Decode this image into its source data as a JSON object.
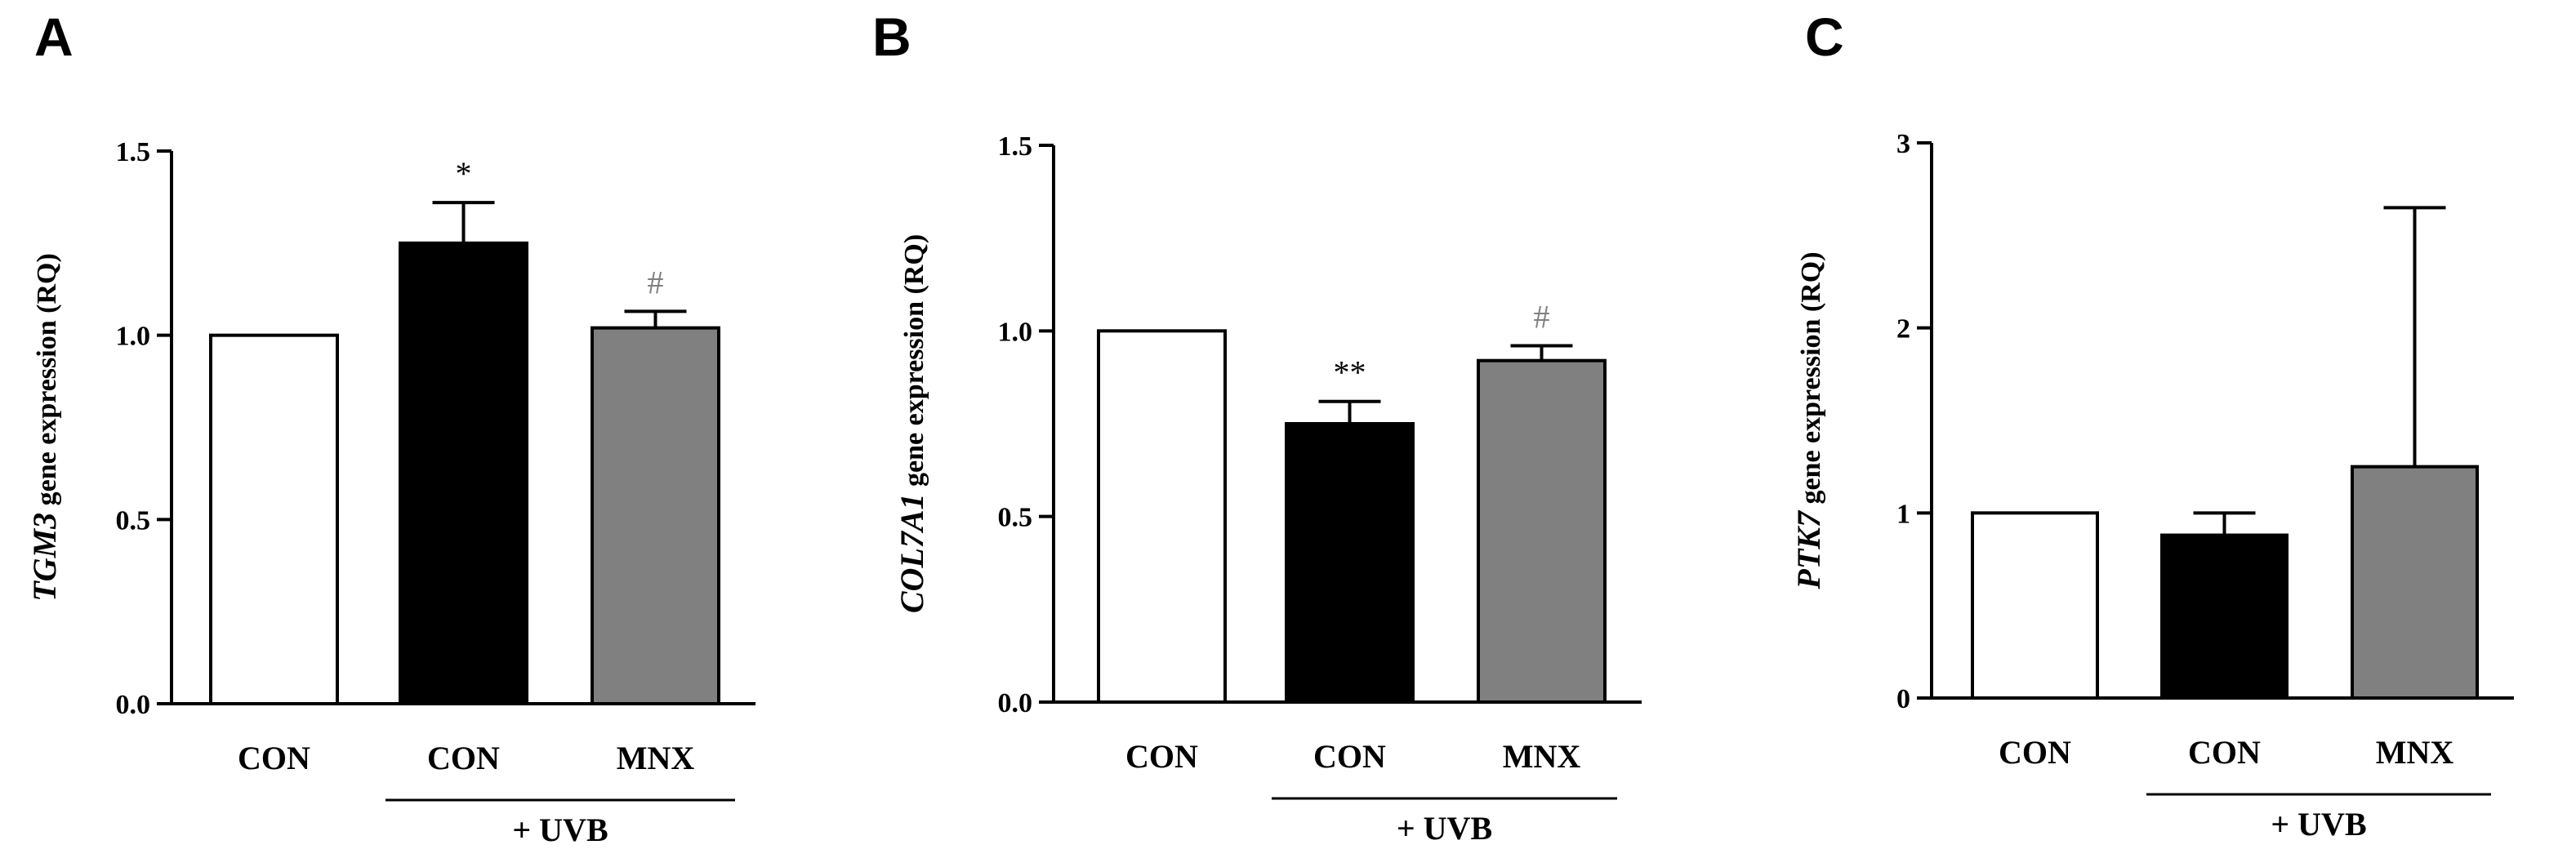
{
  "chart_data": [
    {
      "type": "bar",
      "panel": "A",
      "gene": "TGM3",
      "ylabel_suffix": " gene expression (RQ)",
      "categories": [
        "CON",
        "CON",
        "MNX"
      ],
      "group_label": "+ UVB",
      "values": [
        1.0,
        1.25,
        1.02
      ],
      "errors": [
        0,
        0.11,
        0.045
      ],
      "annotations": [
        "",
        "*",
        "#"
      ],
      "annotation_colors": [
        "#000000",
        "#000000",
        "#808080"
      ],
      "colors": [
        "#ffffff",
        "#000000",
        "#808080"
      ],
      "ylim": [
        0,
        1.5
      ],
      "yticks": [
        0.0,
        0.5,
        1.0,
        1.5
      ],
      "ytick_labels": [
        "0.0",
        "0.5",
        "1.0",
        "1.5"
      ]
    },
    {
      "type": "bar",
      "panel": "B",
      "gene": "COL7A1",
      "ylabel_suffix": " gene expression (RQ)",
      "categories": [
        "CON",
        "CON",
        "MNX"
      ],
      "group_label": "+ UVB",
      "values": [
        1.0,
        0.75,
        0.92
      ],
      "errors": [
        0,
        0.06,
        0.04
      ],
      "annotations": [
        "",
        "**",
        "#"
      ],
      "annotation_colors": [
        "#000000",
        "#000000",
        "#808080"
      ],
      "colors": [
        "#ffffff",
        "#000000",
        "#808080"
      ],
      "ylim": [
        0,
        1.5
      ],
      "yticks": [
        0.0,
        0.5,
        1.0,
        1.5
      ],
      "ytick_labels": [
        "0.0",
        "0.5",
        "1.0",
        "1.5"
      ]
    },
    {
      "type": "bar",
      "panel": "C",
      "gene": "PTK7",
      "ylabel_suffix": " gene expression (RQ)",
      "categories": [
        "CON",
        "CON",
        "MNX"
      ],
      "group_label": "+ UVB",
      "values": [
        1.0,
        0.88,
        1.25
      ],
      "errors": [
        0,
        0.12,
        1.4
      ],
      "annotations": [
        "",
        "",
        ""
      ],
      "annotation_colors": [
        "#000000",
        "#000000",
        "#000000"
      ],
      "colors": [
        "#ffffff",
        "#000000",
        "#808080"
      ],
      "ylim": [
        0,
        3
      ],
      "yticks": [
        0,
        1,
        2,
        3
      ],
      "ytick_labels": [
        "0",
        "1",
        "2",
        "3"
      ]
    }
  ]
}
